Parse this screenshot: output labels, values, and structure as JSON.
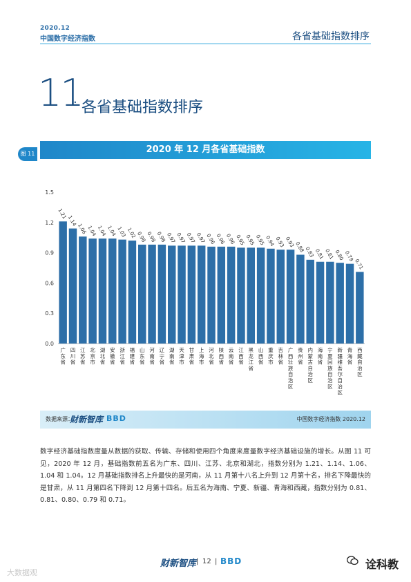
{
  "header": {
    "date": "2020.12",
    "subtitle": "中国数字经济指数",
    "right_title": "各省基础指数排序"
  },
  "section": {
    "number": "11",
    "title": "各省基础指数排序"
  },
  "figure": {
    "tag": "图 11",
    "title": "2020 年 12 月各省基础指数"
  },
  "chart_data": {
    "type": "bar",
    "title": "2020 年 12 月各省基础指数",
    "categories": [
      "广东省",
      "四川省",
      "江苏省",
      "北京市",
      "湖北省",
      "安徽省",
      "浙江省",
      "福建省",
      "山东省",
      "河南省",
      "辽宁省",
      "湖南省",
      "天津市",
      "甘肃省",
      "上海市",
      "河北省",
      "陕西省",
      "云南省",
      "江西省",
      "黑龙江省",
      "山西省",
      "重庆市",
      "吉林省",
      "广西壮族自治区",
      "贵州省",
      "内蒙古自治区",
      "海南省",
      "宁夏回族自治区",
      "新疆维吾尔自治区",
      "青海省",
      "西藏自治区"
    ],
    "values": [
      1.21,
      1.14,
      1.06,
      1.04,
      1.04,
      1.04,
      1.03,
      1.02,
      0.98,
      0.98,
      0.98,
      0.97,
      0.97,
      0.97,
      0.97,
      0.96,
      0.96,
      0.96,
      0.95,
      0.95,
      0.95,
      0.94,
      0.93,
      0.93,
      0.88,
      0.83,
      0.81,
      0.81,
      0.8,
      0.79,
      0.71
    ],
    "value_labels": [
      "1.21",
      "1.14",
      "1.06",
      "1.04",
      "1.04",
      "1.04",
      "1.03",
      "1.02",
      "0.98",
      "0.98",
      "0.98",
      "0.97",
      "0.97",
      "0.97",
      "0.97",
      "0.96",
      "0.96",
      "0.96",
      "0.95",
      "0.95",
      "0.95",
      "0.94",
      "0.93",
      "0.93",
      "0.88",
      "0.83",
      "0.81",
      "0.81",
      "0.80",
      "0.79",
      "0.71"
    ],
    "ylim": [
      0,
      1.5
    ],
    "yticks": [
      "0.0",
      "0.3",
      "0.6",
      "0.9",
      "1.2",
      "1.5"
    ],
    "xlabel": "",
    "ylabel": "",
    "grid": false,
    "colors": {
      "bar": "#2d6fa8",
      "text": "#333333",
      "axis": "#999999"
    }
  },
  "source": {
    "label": "数据来源：",
    "logo_cx": "财新智库",
    "logo_cbn": "BBD",
    "right": "中国数字经济指数 2020.12"
  },
  "body_text": "数字经济基础指数度量从数据的获取、传输、存储和使用四个角度来度量数字经济基础设施的增长。从图 11 可见，2020 年 12 月，基础指数前五名为广东、四川、江苏、北京和湖北，指数分别为 1.21、1.14、1.06、1.04 和 1.04。12 月基础指数排名上升最快的是河南，从 11 月第十八名上升到 12 月第十名，排名下降最快的是甘肃，从 11 月第四名下降到 12 月第十四名。后五名为海南、宁夏、新疆、青海和西藏，指数分别为 0.81、0.81、0.80、0.79 和 0.71。",
  "footer": {
    "logo_cx": "财新智库",
    "separator": "|",
    "page": "12",
    "logo_cbn": "BBD",
    "wechat": "诠科教",
    "watermark": "大数据观"
  }
}
